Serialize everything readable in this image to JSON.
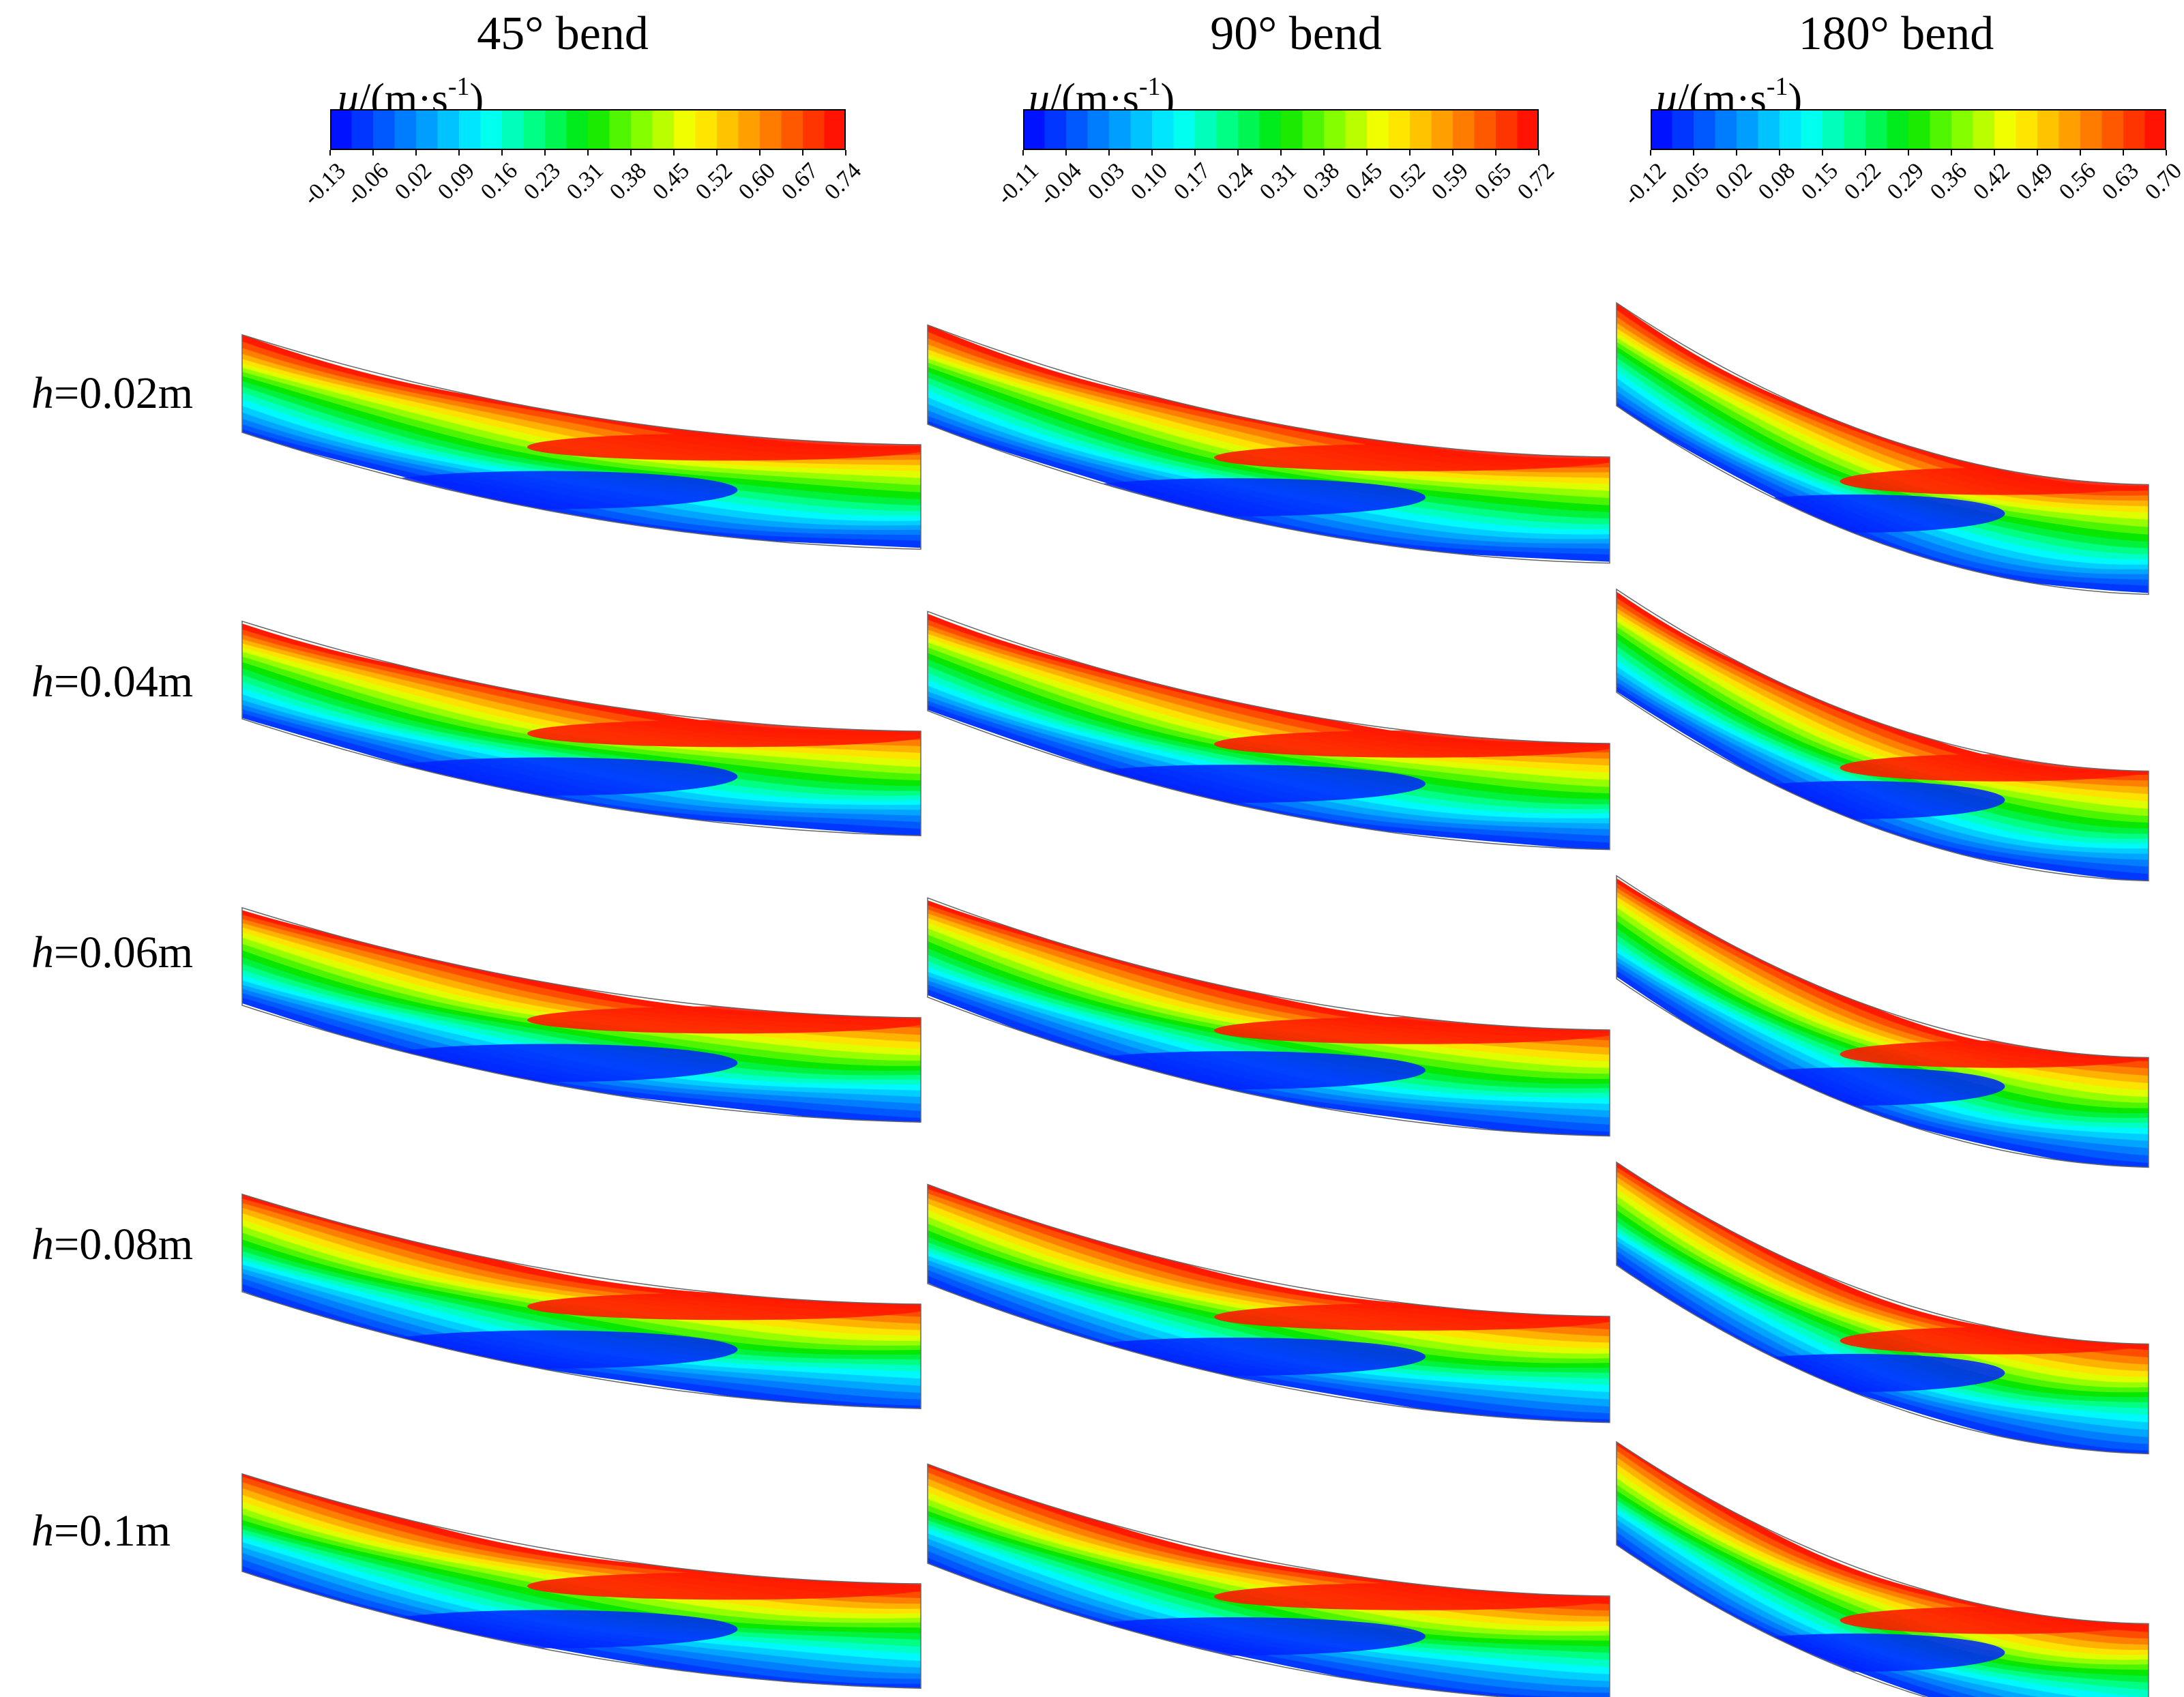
{
  "figure": {
    "columns": [
      {
        "title": "45° bend",
        "quantity_symbol": "u",
        "unit_text": "/(m·s",
        "unit_exponent": "-1",
        "unit_close": ")",
        "ticks": [
          "-0.13",
          "-0.06",
          "0.02",
          "0.09",
          "0.16",
          "0.23",
          "0.31",
          "0.38",
          "0.45",
          "0.52",
          "0.60",
          "0.67",
          "0.74"
        ],
        "sweep": 0.16,
        "thickness": 1.0
      },
      {
        "title": "90° bend",
        "quantity_symbol": "u",
        "unit_text": "/(m·s",
        "unit_exponent": "-1",
        "unit_close": ")",
        "ticks": [
          "-0.11",
          "-0.04",
          "0.03",
          "0.10",
          "0.17",
          "0.24",
          "0.31",
          "0.38",
          "0.45",
          "0.52",
          "0.59",
          "0.65",
          "0.72"
        ],
        "sweep": 0.28,
        "thickness": 1.0
      },
      {
        "title": "180° bend",
        "quantity_symbol": "u",
        "unit_text": "/(m·s",
        "unit_exponent": "-1",
        "unit_close": ")",
        "ticks": [
          "-0.12",
          "-0.05",
          "0.02",
          "0.08",
          "0.15",
          "0.22",
          "0.29",
          "0.36",
          "0.42",
          "0.49",
          "0.56",
          "0.63",
          "0.70"
        ],
        "sweep": 0.55,
        "thickness": 1.0
      }
    ],
    "rows": [
      {
        "symbol": "h",
        "value_text": "=0.02m"
      },
      {
        "symbol": "h",
        "value_text": "=0.04m"
      },
      {
        "symbol": "h",
        "value_text": "=0.06m"
      },
      {
        "symbol": "h",
        "value_text": "=0.08m"
      },
      {
        "symbol": "h",
        "value_text": "=0.1m"
      }
    ],
    "colormap": [
      "#0000ff",
      "#0055ff",
      "#00aaff",
      "#00ffff",
      "#00ff80",
      "#00e600",
      "#80ff00",
      "#ffff00",
      "#ffaa00",
      "#ff5500",
      "#ff0000"
    ]
  }
}
